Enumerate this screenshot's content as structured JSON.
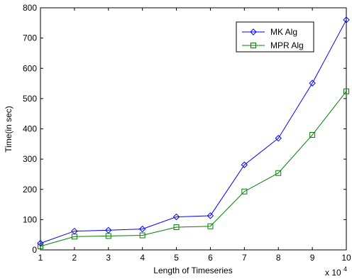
{
  "chart_data": {
    "type": "line",
    "xlabel": "Length of Timeseries",
    "ylabel": "Time(in sec)",
    "x_exponent_base": "x 10",
    "x_exponent_power": "4",
    "xlim": [
      1,
      10
    ],
    "ylim": [
      0,
      800
    ],
    "x_ticks": [
      1,
      2,
      3,
      4,
      5,
      6,
      7,
      8,
      9,
      10
    ],
    "y_ticks": [
      0,
      100,
      200,
      300,
      400,
      500,
      600,
      700,
      800
    ],
    "x": [
      1,
      2,
      3,
      4,
      5,
      6,
      7,
      8,
      9,
      10
    ],
    "legend_position": "top-right",
    "grid": false,
    "series": [
      {
        "name": "MK Alg",
        "marker": "diamond",
        "color": "#0000ff",
        "values": [
          22,
          62,
          65,
          69,
          109,
          113,
          281,
          369,
          551,
          760
        ]
      },
      {
        "name": "MPR Alg",
        "marker": "square",
        "color": "#008000",
        "values": [
          12,
          44,
          46,
          48,
          75,
          78,
          193,
          254,
          380,
          524
        ]
      }
    ]
  }
}
